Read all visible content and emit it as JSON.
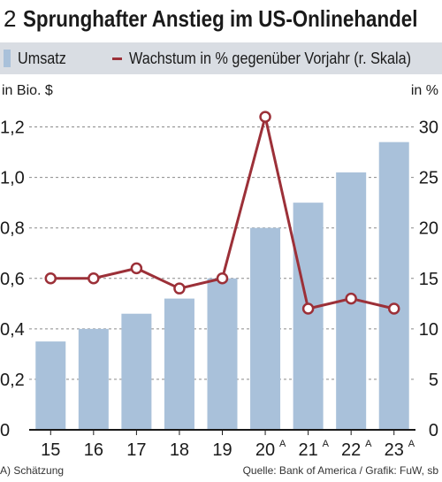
{
  "header": {
    "number": "2",
    "title": "Sprunghafter Anstieg im US-Onlinehandel"
  },
  "legend": {
    "bars_label": "Umsatz",
    "line_label": "Wachstum in % gegenüber Vorjahr (r. Skala)"
  },
  "footer": {
    "footnote": "A) Schätzung",
    "source": "Quelle: Bank of America / Grafik: FuW, sb"
  },
  "chart_data": {
    "type": "bar",
    "title": "Sprunghafter Anstieg im US-Onlinehandel",
    "categories": [
      "15",
      "16",
      "17",
      "18",
      "19",
      "20",
      "21",
      "22",
      "23"
    ],
    "category_superscripts": [
      "",
      "",
      "",
      "",
      "",
      "A",
      "A",
      "A",
      "A"
    ],
    "series": [
      {
        "name": "Umsatz",
        "type": "bar",
        "axis": "left",
        "values": [
          0.35,
          0.4,
          0.46,
          0.52,
          0.6,
          0.8,
          0.9,
          1.02,
          1.14
        ]
      },
      {
        "name": "Wachstum in % gegenüber Vorjahr (r. Skala)",
        "type": "line",
        "axis": "right",
        "values": [
          15,
          15,
          16,
          14,
          15,
          31,
          12,
          13,
          12
        ]
      }
    ],
    "y_left": {
      "label": "in Bio. $",
      "range": [
        0,
        1.3
      ],
      "ticks": [
        "0",
        "0,2",
        "0,4",
        "0,6",
        "0,8",
        "1,0",
        "1,2"
      ],
      "tick_values": [
        0,
        0.2,
        0.4,
        0.6,
        0.8,
        1.0,
        1.2
      ]
    },
    "y_right": {
      "label": "in %",
      "range": [
        0,
        32.5
      ],
      "ticks": [
        "0",
        "5",
        "10",
        "15",
        "20",
        "25",
        "30"
      ],
      "tick_values": [
        0,
        5,
        10,
        15,
        20,
        25,
        30
      ]
    },
    "grid": "horizontal dashed",
    "legend_position": "top",
    "colors": {
      "bar": "#a9c1da",
      "line": "#9c3038",
      "legend_bg": "#d9dde3",
      "grid": "#8a8a8a"
    }
  }
}
